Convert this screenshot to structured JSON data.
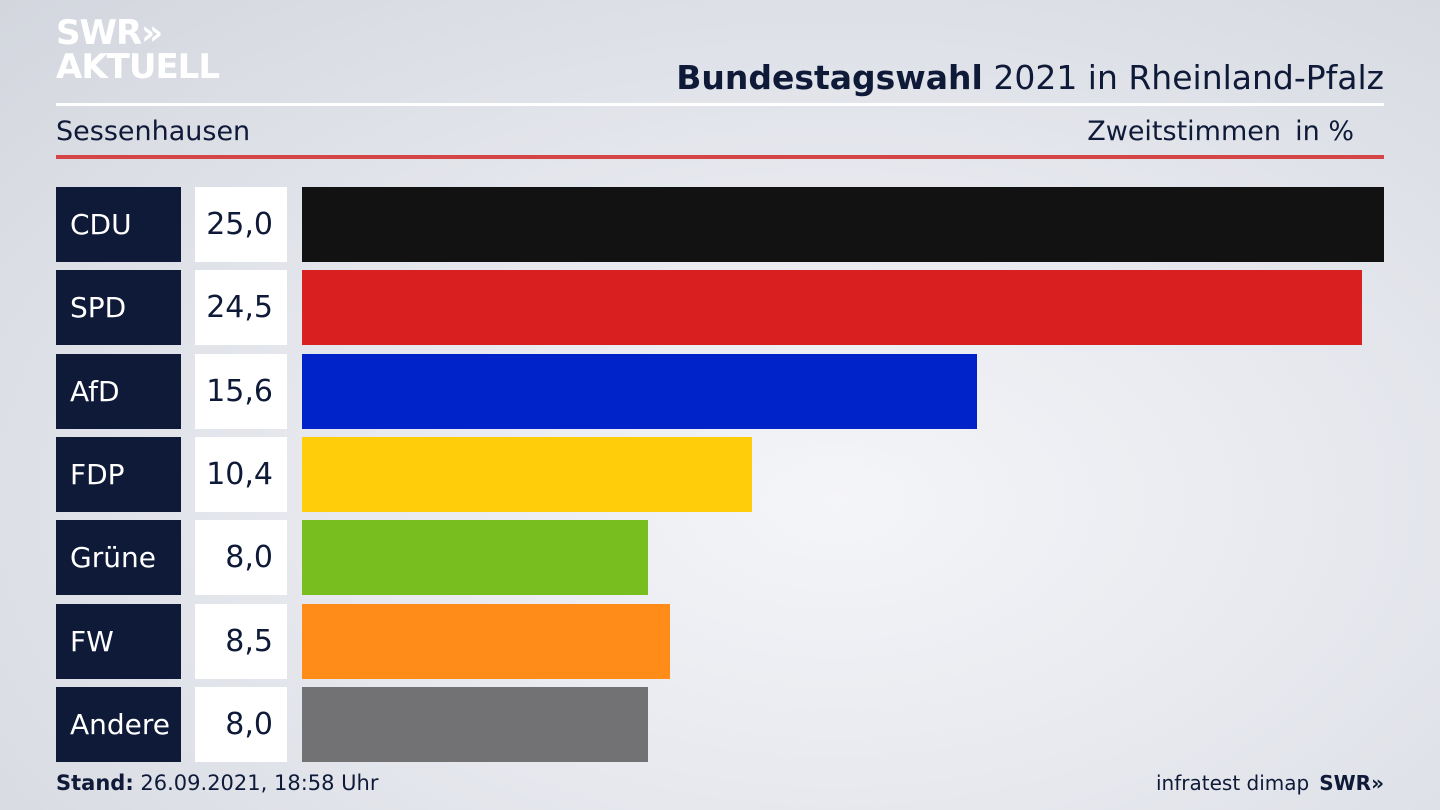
{
  "header": {
    "logo_line1": "SWR»",
    "logo_line2": "AKTUELL",
    "title_bold": "Bundestagswahl",
    "title_rest": " 2021 in Rheinland-Pfalz",
    "place": "Sessenhausen",
    "metric": "Zweitstimmen",
    "unit": "in %"
  },
  "chart_data": {
    "type": "bar",
    "orientation": "horizontal",
    "categories": [
      "CDU",
      "SPD",
      "AfD",
      "FDP",
      "Grüne",
      "FW",
      "Andere"
    ],
    "values": [
      25.0,
      24.5,
      15.6,
      10.4,
      8.0,
      8.5,
      8.0
    ],
    "value_labels": [
      "25,0",
      "24,5",
      "15,6",
      "10,4",
      "8,0",
      "8,5",
      "8,0"
    ],
    "colors": [
      "#121212",
      "#d91f1f",
      "#0022c9",
      "#ffcd0a",
      "#78be1e",
      "#ff8c19",
      "#727274"
    ],
    "xlim": [
      0,
      25.0
    ]
  },
  "footer": {
    "stand_label": "Stand:",
    "stand_value": " 26.09.2021, 18:58 Uhr",
    "source": "infratest dimap",
    "brand": "SWR»"
  }
}
